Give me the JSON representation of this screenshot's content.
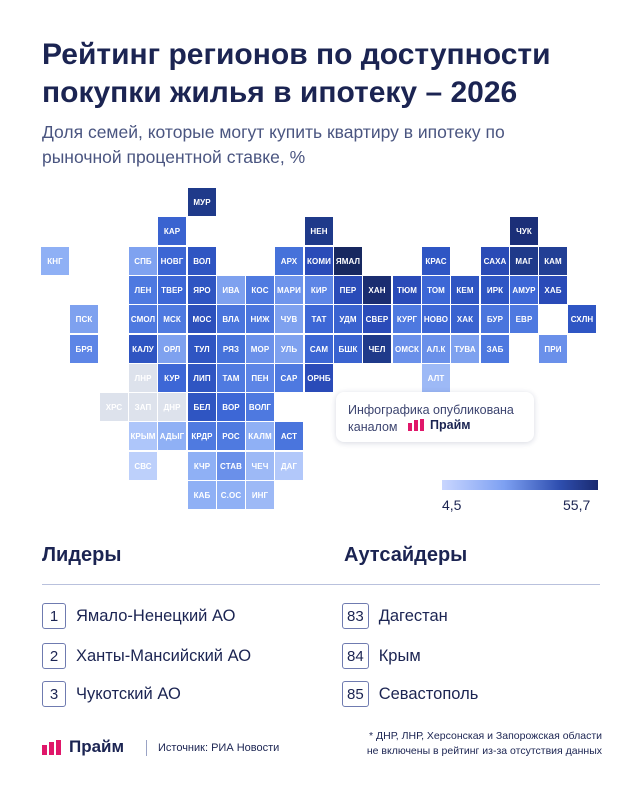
{
  "header": {
    "title": "Рейтинг регионов по доступности покупки жилья в ипотеку – 2026",
    "subtitle": "Доля семей, которые могут купить квартиру в ипотеку по рыночной процентной ставке, %"
  },
  "map": {
    "regions": [
      {
        "code": "МУР",
        "col": 5,
        "row": 0,
        "color": "#1f3a8a",
        "text": "#ffffff"
      },
      {
        "code": "КАР",
        "col": 4,
        "row": 1,
        "color": "#3a63d0",
        "text": "#ffffff"
      },
      {
        "code": "НЕН",
        "col": 9,
        "row": 1,
        "color": "#1f3a8a",
        "text": "#ffffff"
      },
      {
        "code": "ЧУК",
        "col": 16,
        "row": 1,
        "color": "#1b2f78",
        "text": "#ffffff"
      },
      {
        "code": "КНГ",
        "col": 0,
        "row": 2,
        "color": "#8fb0f5",
        "text": "#ffffff"
      },
      {
        "code": "СПБ",
        "col": 3,
        "row": 2,
        "color": "#7fa2f0",
        "text": "#ffffff"
      },
      {
        "code": "НОВГ",
        "col": 4,
        "row": 2,
        "color": "#3c66d4",
        "text": "#ffffff"
      },
      {
        "code": "ВОЛ",
        "col": 5,
        "row": 2,
        "color": "#2f55c2",
        "text": "#ffffff"
      },
      {
        "code": "АРХ",
        "col": 8,
        "row": 2,
        "color": "#4672da",
        "text": "#ffffff"
      },
      {
        "code": "КОМИ",
        "col": 9,
        "row": 2,
        "color": "#2a4bb8",
        "text": "#ffffff"
      },
      {
        "code": "ЯМАЛ",
        "col": 10,
        "row": 2,
        "color": "#172860",
        "text": "#ffffff"
      },
      {
        "code": "КРАС",
        "col": 13,
        "row": 2,
        "color": "#2f56c4",
        "text": "#ffffff"
      },
      {
        "code": "САХА",
        "col": 15,
        "row": 2,
        "color": "#2a4bb6",
        "text": "#ffffff"
      },
      {
        "code": "МАГ",
        "col": 16,
        "row": 2,
        "color": "#1f3a8a",
        "text": "#ffffff"
      },
      {
        "code": "КАМ",
        "col": 17,
        "row": 2,
        "color": "#223f95",
        "text": "#ffffff"
      },
      {
        "code": "ЛЕН",
        "col": 3,
        "row": 3,
        "color": "#4e79e0",
        "text": "#ffffff"
      },
      {
        "code": "ТВЕР",
        "col": 4,
        "row": 3,
        "color": "#3d67d6",
        "text": "#ffffff"
      },
      {
        "code": "ЯРО",
        "col": 5,
        "row": 3,
        "color": "#2f55c2",
        "text": "#ffffff"
      },
      {
        "code": "ИВА",
        "col": 6,
        "row": 3,
        "color": "#7ea1ef",
        "text": "#ffffff"
      },
      {
        "code": "КОС",
        "col": 7,
        "row": 3,
        "color": "#4f7ae0",
        "text": "#ffffff"
      },
      {
        "code": "МАРИ",
        "col": 8,
        "row": 3,
        "color": "#6f95ec",
        "text": "#ffffff"
      },
      {
        "code": "КИР",
        "col": 9,
        "row": 3,
        "color": "#5d85e6",
        "text": "#ffffff"
      },
      {
        "code": "ПЕР",
        "col": 10,
        "row": 3,
        "color": "#2a4bb8",
        "text": "#ffffff"
      },
      {
        "code": "ХАН",
        "col": 11,
        "row": 3,
        "color": "#1a2d70",
        "text": "#ffffff"
      },
      {
        "code": "ТЮМ",
        "col": 12,
        "row": 3,
        "color": "#2a4bb8",
        "text": "#ffffff"
      },
      {
        "code": "ТОМ",
        "col": 13,
        "row": 3,
        "color": "#3d67d6",
        "text": "#ffffff"
      },
      {
        "code": "КЕМ",
        "col": 14,
        "row": 3,
        "color": "#2f55c2",
        "text": "#ffffff"
      },
      {
        "code": "ИРК",
        "col": 15,
        "row": 3,
        "color": "#2f56c4",
        "text": "#ffffff"
      },
      {
        "code": "АМУР",
        "col": 16,
        "row": 3,
        "color": "#3d67d6",
        "text": "#ffffff"
      },
      {
        "code": "ХАБ",
        "col": 17,
        "row": 3,
        "color": "#2a4bb8",
        "text": "#ffffff"
      },
      {
        "code": "ПСК",
        "col": 1,
        "row": 4,
        "color": "#7ea1ef",
        "text": "#ffffff"
      },
      {
        "code": "СМОЛ",
        "col": 3,
        "row": 4,
        "color": "#4e79e0",
        "text": "#ffffff"
      },
      {
        "code": "МСК",
        "col": 4,
        "row": 4,
        "color": "#4f7ae0",
        "text": "#ffffff"
      },
      {
        "code": "МОС",
        "col": 5,
        "row": 4,
        "color": "#2c50bc",
        "text": "#ffffff"
      },
      {
        "code": "ВЛА",
        "col": 6,
        "row": 4,
        "color": "#4a75dd",
        "text": "#ffffff"
      },
      {
        "code": "НИЖ",
        "col": 7,
        "row": 4,
        "color": "#4a75dd",
        "text": "#ffffff"
      },
      {
        "code": "ЧУВ",
        "col": 8,
        "row": 4,
        "color": "#7ea1ef",
        "text": "#ffffff"
      },
      {
        "code": "ТАТ",
        "col": 9,
        "row": 4,
        "color": "#3d67d6",
        "text": "#ffffff"
      },
      {
        "code": "УДМ",
        "col": 10,
        "row": 4,
        "color": "#3a63d0",
        "text": "#ffffff"
      },
      {
        "code": "СВЕР",
        "col": 11,
        "row": 4,
        "color": "#2a4bb8",
        "text": "#ffffff"
      },
      {
        "code": "КУРГ",
        "col": 12,
        "row": 4,
        "color": "#4e79e0",
        "text": "#ffffff"
      },
      {
        "code": "НОВО",
        "col": 13,
        "row": 4,
        "color": "#3d67d6",
        "text": "#ffffff"
      },
      {
        "code": "ХАК",
        "col": 14,
        "row": 4,
        "color": "#3a63d0",
        "text": "#ffffff"
      },
      {
        "code": "БУР",
        "col": 15,
        "row": 4,
        "color": "#4a75dd",
        "text": "#ffffff"
      },
      {
        "code": "ЕВР",
        "col": 16,
        "row": 4,
        "color": "#4e79e0",
        "text": "#ffffff"
      },
      {
        "code": "СХЛН",
        "col": 18,
        "row": 4,
        "color": "#2f56c4",
        "text": "#ffffff"
      },
      {
        "code": "БРЯ",
        "col": 1,
        "row": 5,
        "color": "#5d85e6",
        "text": "#ffffff"
      },
      {
        "code": "КАЛУ",
        "col": 3,
        "row": 5,
        "color": "#2f55c2",
        "text": "#ffffff"
      },
      {
        "code": "ОРЛ",
        "col": 4,
        "row": 5,
        "color": "#7ea1ef",
        "text": "#ffffff"
      },
      {
        "code": "ТУЛ",
        "col": 5,
        "row": 5,
        "color": "#2f55c2",
        "text": "#ffffff"
      },
      {
        "code": "РЯЗ",
        "col": 6,
        "row": 5,
        "color": "#4672da",
        "text": "#ffffff"
      },
      {
        "code": "МОР",
        "col": 7,
        "row": 5,
        "color": "#6a90ea",
        "text": "#ffffff"
      },
      {
        "code": "УЛЬ",
        "col": 8,
        "row": 5,
        "color": "#7ea1ef",
        "text": "#ffffff"
      },
      {
        "code": "САМ",
        "col": 9,
        "row": 5,
        "color": "#3c66d4",
        "text": "#ffffff"
      },
      {
        "code": "БШК",
        "col": 10,
        "row": 5,
        "color": "#3a63d0",
        "text": "#ffffff"
      },
      {
        "code": "ЧЕЛ",
        "col": 11,
        "row": 5,
        "color": "#1f3a8a",
        "text": "#ffffff"
      },
      {
        "code": "ОМСК",
        "col": 12,
        "row": 5,
        "color": "#6a90ea",
        "text": "#ffffff"
      },
      {
        "code": "АЛ.К",
        "col": 13,
        "row": 5,
        "color": "#6a90ea",
        "text": "#ffffff"
      },
      {
        "code": "ТУВА",
        "col": 14,
        "row": 5,
        "color": "#7ea1ef",
        "text": "#ffffff"
      },
      {
        "code": "ЗАБ",
        "col": 15,
        "row": 5,
        "color": "#4e79e0",
        "text": "#ffffff"
      },
      {
        "code": "ПРИ",
        "col": 17,
        "row": 5,
        "color": "#6a90ea",
        "text": "#ffffff"
      },
      {
        "code": "ЛНР",
        "col": 3,
        "row": 6,
        "color": "#dde2ec",
        "text": "#ffffff"
      },
      {
        "code": "КУР",
        "col": 4,
        "row": 6,
        "color": "#3d67d6",
        "text": "#ffffff"
      },
      {
        "code": "ЛИП",
        "col": 5,
        "row": 6,
        "color": "#2f55c2",
        "text": "#ffffff"
      },
      {
        "code": "ТАМ",
        "col": 6,
        "row": 6,
        "color": "#4f7ae0",
        "text": "#ffffff"
      },
      {
        "code": "ПЕН",
        "col": 7,
        "row": 6,
        "color": "#5d85e6",
        "text": "#ffffff"
      },
      {
        "code": "САР",
        "col": 8,
        "row": 6,
        "color": "#4e79e0",
        "text": "#ffffff"
      },
      {
        "code": "ОРНБ",
        "col": 9,
        "row": 6,
        "color": "#2a4bb8",
        "text": "#ffffff"
      },
      {
        "code": "АЛТ",
        "col": 13,
        "row": 6,
        "color": "#9db9f6",
        "text": "#ffffff"
      },
      {
        "code": "ХРС",
        "col": 2,
        "row": 7,
        "color": "#dde2ec",
        "text": "#ffffff"
      },
      {
        "code": "ЗАП",
        "col": 3,
        "row": 7,
        "color": "#dde2ec",
        "text": "#ffffff"
      },
      {
        "code": "ДНР",
        "col": 4,
        "row": 7,
        "color": "#dde2ec",
        "text": "#ffffff"
      },
      {
        "code": "БЕЛ",
        "col": 5,
        "row": 7,
        "color": "#2f55c2",
        "text": "#ffffff"
      },
      {
        "code": "ВОР",
        "col": 6,
        "row": 7,
        "color": "#3d67d6",
        "text": "#ffffff"
      },
      {
        "code": "ВОЛГ",
        "col": 7,
        "row": 7,
        "color": "#4e79e0",
        "text": "#ffffff"
      },
      {
        "code": "КРЫМ",
        "col": 3,
        "row": 8,
        "color": "#aec6fa",
        "text": "#ffffff"
      },
      {
        "code": "АДЫГ",
        "col": 4,
        "row": 8,
        "color": "#8fb0f5",
        "text": "#ffffff"
      },
      {
        "code": "КРДР",
        "col": 5,
        "row": 8,
        "color": "#4f7ae0",
        "text": "#ffffff"
      },
      {
        "code": "РОС",
        "col": 6,
        "row": 8,
        "color": "#4f7ae0",
        "text": "#ffffff"
      },
      {
        "code": "КАЛМ",
        "col": 7,
        "row": 8,
        "color": "#8fb0f5",
        "text": "#ffffff"
      },
      {
        "code": "АСТ",
        "col": 8,
        "row": 8,
        "color": "#4a75dd",
        "text": "#ffffff"
      },
      {
        "code": "СВС",
        "col": 3,
        "row": 9,
        "color": "#bdd0fb",
        "text": "#ffffff"
      },
      {
        "code": "КЧР",
        "col": 5,
        "row": 9,
        "color": "#8fb0f5",
        "text": "#ffffff"
      },
      {
        "code": "СТАВ",
        "col": 6,
        "row": 9,
        "color": "#6a90ea",
        "text": "#ffffff"
      },
      {
        "code": "ЧЕЧ",
        "col": 7,
        "row": 9,
        "color": "#9db9f6",
        "text": "#ffffff"
      },
      {
        "code": "ДАГ",
        "col": 8,
        "row": 9,
        "color": "#b2c8fa",
        "text": "#ffffff"
      },
      {
        "code": "КАБ",
        "col": 5,
        "row": 10,
        "color": "#8fb0f5",
        "text": "#ffffff"
      },
      {
        "code": "С.ОС",
        "col": 6,
        "row": 10,
        "color": "#8fb0f5",
        "text": "#ffffff"
      },
      {
        "code": "ИНГ",
        "col": 7,
        "row": 10,
        "color": "#9db9f6",
        "text": "#ffffff"
      }
    ]
  },
  "credit": {
    "line1": "Инфографика опубликована",
    "line2": "каналом",
    "brand": "Прайм"
  },
  "scale": {
    "min": "4,5",
    "max": "55,7",
    "color_low": "#c9d6ff",
    "color_high": "#1a2a70"
  },
  "leaders": {
    "heading": "Лидеры",
    "items": [
      {
        "rank": "1",
        "name": "Ямало-Ненецкий АО"
      },
      {
        "rank": "2",
        "name": "Ханты-Мансийский АО"
      },
      {
        "rank": "3",
        "name": "Чукотский АО"
      }
    ]
  },
  "outsiders": {
    "heading": "Аутсайдеры",
    "items": [
      {
        "rank": "83",
        "name": "Дагестан"
      },
      {
        "rank": "84",
        "name": "Крым"
      },
      {
        "rank": "85",
        "name": "Севастополь"
      }
    ]
  },
  "footer": {
    "brand": "Прайм",
    "source": "Источник: РИА Новости",
    "note_line1": "* ДНР, ЛНР, Херсонская и Запорожская области",
    "note_line2": "не включены в рейтинг из-за отсутствия данных"
  }
}
